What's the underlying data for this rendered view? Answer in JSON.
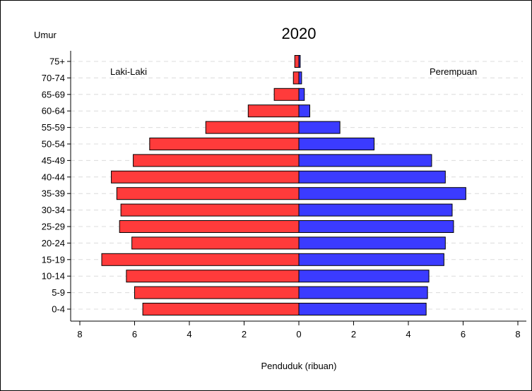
{
  "chart_data": {
    "type": "bar",
    "title": "2020",
    "ylabel": "Umur",
    "xlabel": "Penduduk (ribuan)",
    "categories": [
      "75+",
      "70-74",
      "65-69",
      "60-64",
      "55-59",
      "50-54",
      "45-49",
      "40-44",
      "35-39",
      "30-34",
      "25-29",
      "20-24",
      "15-19",
      "10-14",
      "5-9",
      "0-4"
    ],
    "xlim": [
      -8,
      8
    ],
    "xticks": [
      -8,
      -6,
      -4,
      -2,
      0,
      2,
      4,
      6,
      8
    ],
    "xtick_labels": [
      "8",
      "6",
      "4",
      "2",
      "0",
      "2",
      "4",
      "6",
      "8"
    ],
    "grid": "horizontal dashed",
    "series": [
      {
        "name": "Laki-Laki",
        "color": "#ff3b3b",
        "side": "left",
        "values": [
          0.15,
          0.2,
          0.9,
          1.85,
          3.4,
          5.45,
          6.05,
          6.85,
          6.65,
          6.5,
          6.55,
          6.1,
          7.2,
          6.3,
          6.0,
          5.7
        ]
      },
      {
        "name": "Perempuan",
        "color": "#3b3bff",
        "side": "right",
        "values": [
          0.05,
          0.1,
          0.2,
          0.4,
          1.5,
          2.75,
          4.85,
          5.35,
          6.1,
          5.6,
          5.65,
          5.35,
          5.3,
          4.75,
          4.7,
          4.65
        ]
      }
    ]
  }
}
